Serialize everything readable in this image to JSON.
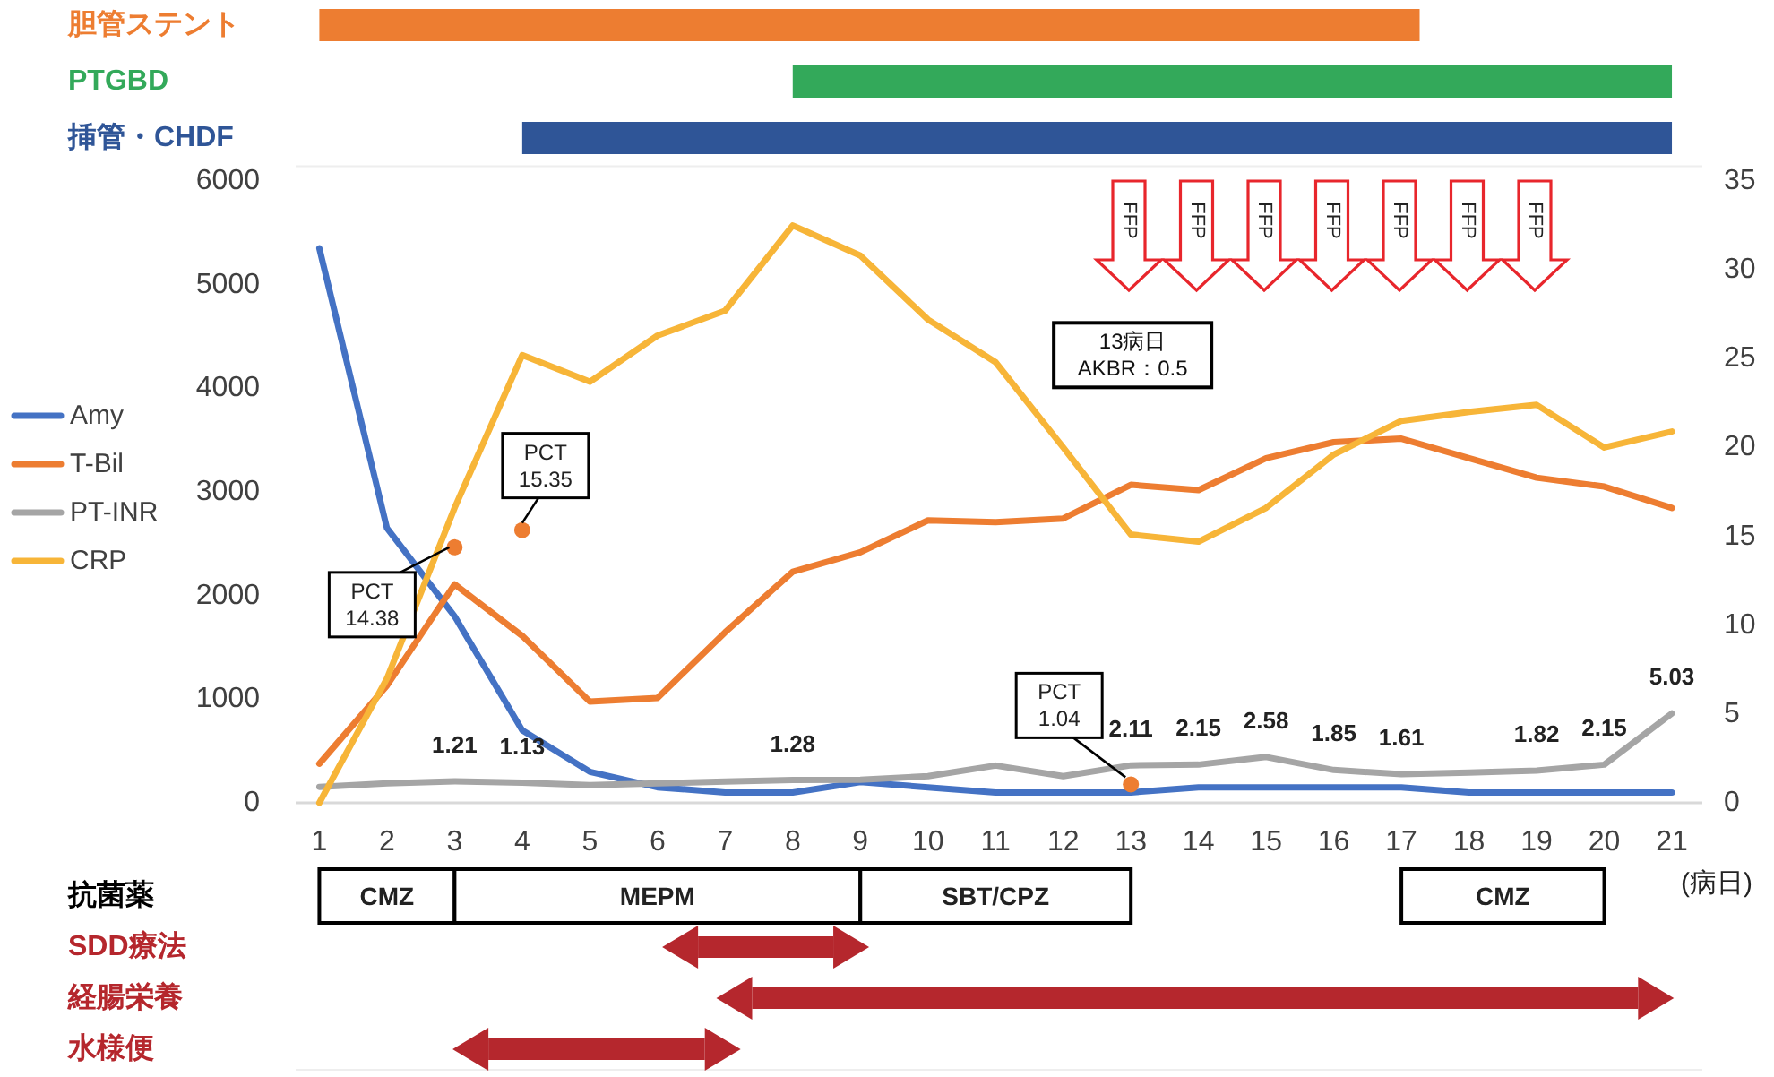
{
  "chart_data": [
    {
      "type": "bar",
      "orientation": "horizontal",
      "categories": [
        "胆管ステント",
        "PTGBD",
        "挿管・CHDF"
      ],
      "xlim": [
        0.65,
        21.45
      ],
      "tick_labels": false,
      "series": [
        {
          "values": [
            16.27,
            13,
            17
          ],
          "base": [
            1,
            8,
            4
          ],
          "colors": [
            "#ed7d31",
            "#33a95a",
            "#2f5597"
          ]
        }
      ]
    },
    {
      "type": "line",
      "xlabel": "(病日)",
      "x": [
        1,
        2,
        3,
        4,
        5,
        6,
        7,
        8,
        9,
        10,
        11,
        12,
        13,
        14,
        15,
        16,
        17,
        18,
        19,
        20,
        21
      ],
      "xlim": [
        0.65,
        21.45
      ],
      "xticks": [
        1,
        2,
        3,
        4,
        5,
        6,
        7,
        8,
        9,
        10,
        11,
        12,
        13,
        14,
        15,
        16,
        17,
        18,
        19,
        20,
        21
      ],
      "ylim": [
        0,
        6000
      ],
      "yticks": [
        0,
        1000,
        2000,
        3000,
        4000,
        5000,
        6000
      ],
      "y2lim": [
        0,
        35
      ],
      "y2ticks": [
        0,
        5,
        10,
        15,
        20,
        25,
        30,
        35
      ],
      "legend": "left",
      "grid": false,
      "line_style": "solid",
      "series": [
        {
          "name": "Amy",
          "color": "#4472c4",
          "values": [
            5350,
            2650,
            1800,
            700,
            300,
            150,
            100,
            100,
            200,
            150,
            100,
            100,
            100,
            150,
            150,
            150,
            150,
            100,
            100,
            100,
            100
          ]
        },
        {
          "name": "T-Bil",
          "color": "#ed7d31",
          "axis": "y2",
          "values": [
            2.2,
            6.6,
            12.3,
            9.4,
            5.7,
            5.9,
            9.6,
            13.0,
            14.1,
            15.9,
            15.8,
            16.0,
            17.9,
            17.6,
            19.4,
            20.3,
            20.5,
            19.4,
            18.3,
            17.8,
            16.6
          ]
        },
        {
          "name": "PT-INR",
          "color": "#a5a5a5",
          "axis": "y2",
          "values": [
            0.9,
            1.1,
            1.21,
            1.13,
            1.0,
            1.1,
            1.2,
            1.28,
            1.3,
            1.5,
            2.1,
            1.5,
            2.11,
            2.15,
            2.58,
            1.85,
            1.61,
            1.7,
            1.82,
            2.15,
            5.03
          ],
          "value_labels": [
            null,
            null,
            "1.21",
            "1.13",
            null,
            null,
            null,
            "1.28",
            null,
            null,
            null,
            null,
            "2.11",
            "2.15",
            "2.58",
            "1.85",
            "1.61",
            null,
            "1.82",
            "2.15",
            "5.03"
          ]
        },
        {
          "name": "CRP",
          "color": "#f7b538",
          "axis": "y2",
          "values": [
            0,
            7.0,
            16.6,
            25.2,
            23.7,
            26.3,
            27.7,
            32.5,
            30.8,
            27.2,
            24.8,
            20.0,
            15.1,
            14.7,
            16.6,
            19.6,
            21.5,
            22.0,
            22.4,
            20.0,
            20.9
          ]
        },
        {
          "type": "scatter",
          "marker": "circle",
          "color": "#ed7d31",
          "axis": "y2",
          "x": [
            3,
            4,
            13
          ],
          "values": [
            14.38,
            15.35,
            1.04
          ],
          "value_labels": [
            "PCT\n14.38",
            "PCT\n15.35",
            "PCT\n1.04"
          ]
        }
      ],
      "annotations": [
        "13病日\nAKBR：0.5",
        "FFP",
        "FFP",
        "FFP",
        "FFP",
        "FFP",
        "FFP",
        "FFP"
      ]
    },
    {
      "type": "bar",
      "orientation": "horizontal",
      "categories": [
        "抗菌薬",
        "SDD療法",
        "経腸栄養",
        "水様便"
      ],
      "xlim": [
        0.65,
        21.45
      ],
      "tick_labels": false,
      "series": [
        {
          "color": "#ffffff",
          "values": [
            2,
            null,
            null,
            null
          ],
          "base": [
            1,
            null,
            null,
            null
          ],
          "value_labels": [
            "CMZ",
            null,
            null,
            null
          ]
        },
        {
          "color": "#ffffff",
          "values": [
            6,
            null,
            null,
            null
          ],
          "base": [
            3,
            null,
            null,
            null
          ],
          "value_labels": [
            "MEPM",
            null,
            null,
            null
          ]
        },
        {
          "color": "#ffffff",
          "values": [
            4,
            null,
            null,
            null
          ],
          "base": [
            9,
            null,
            null,
            null
          ],
          "value_labels": [
            "SBT/CPZ",
            null,
            null,
            null
          ]
        },
        {
          "color": "#ffffff",
          "values": [
            3,
            null,
            null,
            null
          ],
          "base": [
            17,
            null,
            null,
            null
          ],
          "value_labels": [
            "CMZ",
            null,
            null,
            null
          ]
        },
        {
          "color": "#b5272d",
          "values": [
            null,
            2.0,
            13.1,
            3.2
          ],
          "base": [
            null,
            6.6,
            7.4,
            3.5
          ]
        }
      ]
    }
  ]
}
